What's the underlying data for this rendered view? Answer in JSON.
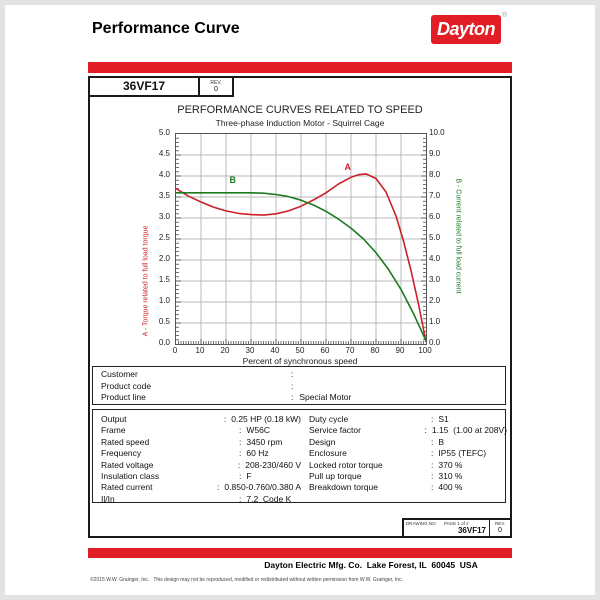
{
  "colors": {
    "brand_red": "#e11e26",
    "torque_red": "#cc2128",
    "current_green": "#1d7a1f"
  },
  "header": {
    "title": "Performance Curve",
    "brand": "Dayton",
    "registered": "®"
  },
  "model_box": {
    "model": "36VF17",
    "rev_label": "REV.",
    "rev_value": "0"
  },
  "chart_data": {
    "type": "line",
    "title": "PERFORMANCE CURVES RELATED TO SPEED",
    "subtitle": "Three-phase Induction Motor - Squirrel Cage",
    "xlabel": "Percent of synchronous speed",
    "left_axis_label": "A - Torque related to full load torque",
    "right_axis_label": "B - Current related to full load current",
    "xlim": [
      0,
      100
    ],
    "left_ylim": [
      0,
      5
    ],
    "right_ylim": [
      0,
      10
    ],
    "grid": true,
    "x_ticks": [
      "0",
      "10",
      "20",
      "30",
      "40",
      "50",
      "60",
      "70",
      "80",
      "90",
      "100"
    ],
    "left_ticks": [
      "5.0",
      "4.5",
      "4.0",
      "3.5",
      "3.0",
      "2.5",
      "2.0",
      "1.5",
      "1.0",
      "0.5",
      "0.0"
    ],
    "right_ticks": [
      "10.0",
      "9.0",
      "8.0",
      "7.0",
      "6.0",
      "5.0",
      "4.0",
      "3.0",
      "2.0",
      "1.0",
      "0.0"
    ],
    "series": [
      {
        "name": "A - Torque related to full load torque",
        "label": "A",
        "axis": "left",
        "color": "#cc2128",
        "label_x": 69,
        "label_value": 4.18,
        "points": [
          [
            0,
            3.7
          ],
          [
            5,
            3.52
          ],
          [
            10,
            3.38
          ],
          [
            15,
            3.26
          ],
          [
            20,
            3.17
          ],
          [
            25,
            3.11
          ],
          [
            30,
            3.08
          ],
          [
            35,
            3.07
          ],
          [
            40,
            3.1
          ],
          [
            45,
            3.17
          ],
          [
            50,
            3.28
          ],
          [
            55,
            3.43
          ],
          [
            60,
            3.6
          ],
          [
            65,
            3.81
          ],
          [
            70,
            3.97
          ],
          [
            73,
            4.03
          ],
          [
            76,
            4.05
          ],
          [
            80,
            3.94
          ],
          [
            84,
            3.62
          ],
          [
            88,
            3.05
          ],
          [
            91,
            2.45
          ],
          [
            94,
            1.75
          ],
          [
            97,
            0.95
          ],
          [
            100,
            0.05
          ]
        ]
      },
      {
        "name": "B - Current related to full load current",
        "label": "B",
        "axis": "right",
        "color": "#1d7a1f",
        "label_x": 23,
        "label_value": 7.78,
        "points": [
          [
            0,
            7.2
          ],
          [
            10,
            7.2
          ],
          [
            20,
            7.2
          ],
          [
            30,
            7.2
          ],
          [
            35,
            7.18
          ],
          [
            40,
            7.12
          ],
          [
            45,
            7.02
          ],
          [
            50,
            6.85
          ],
          [
            55,
            6.62
          ],
          [
            60,
            6.32
          ],
          [
            65,
            5.95
          ],
          [
            70,
            5.52
          ],
          [
            75,
            5.0
          ],
          [
            80,
            4.35
          ],
          [
            85,
            3.55
          ],
          [
            90,
            2.6
          ],
          [
            95,
            1.45
          ],
          [
            100,
            0.15
          ]
        ]
      }
    ]
  },
  "customer_box": {
    "rows": [
      {
        "label": "Customer",
        "sep": ":",
        "value": ""
      },
      {
        "label": "Product code",
        "sep": ":",
        "value": ""
      },
      {
        "label": "Product line",
        "sep": ":",
        "value": "Special Motor"
      }
    ]
  },
  "specs": {
    "left": [
      {
        "label": "Output",
        "sep": ":",
        "value": "0.25 HP (0.18 kW)"
      },
      {
        "label": "Frame",
        "sep": ":",
        "value": "W56C"
      },
      {
        "label": "Rated speed",
        "sep": ":",
        "value": "3450 rpm"
      },
      {
        "label": "Frequency",
        "sep": ":",
        "value": "60 Hz"
      },
      {
        "label": "Rated voltage",
        "sep": ":",
        "value": "208-230/460 V"
      },
      {
        "label": "Insulation class",
        "sep": ":",
        "value": "F"
      },
      {
        "label": "Rated current",
        "sep": ":",
        "value": "0.850-0.760/0.380 A"
      },
      {
        "label": "Il/In",
        "sep": ":",
        "value": "7.2  Code K"
      }
    ],
    "right": [
      {
        "label": "Duty cycle",
        "sep": ":",
        "value": "S1"
      },
      {
        "label": "Service factor",
        "sep": ":",
        "value": "1.15  (1.00 at 208V)"
      },
      {
        "label": "Design",
        "sep": ":",
        "value": "B"
      },
      {
        "label": "Enclosure",
        "sep": ":",
        "value": "IP55 (TEFC)"
      },
      {
        "label": "Locked rotor torque",
        "sep": ":",
        "value": "370 %"
      },
      {
        "label": "Pull up torque",
        "sep": ":",
        "value": "310 %"
      },
      {
        "label": "Breakdown torque",
        "sep": ":",
        "value": "400 %"
      }
    ]
  },
  "drawing_box": {
    "drawing_no_label": "DRAWING NO.",
    "page_label": "PAGE 1 of 2",
    "drawing_no": "36VF17",
    "rev_label": "REV.",
    "rev_value": "0"
  },
  "footer": {
    "address": "Dayton Electric Mfg. Co.  Lake Forest, IL  60045  USA",
    "copyright": "©2015 W.W. Grainger, Inc.   This design may not be reproduced, modified or redistributed without written permission from W.W. Grainger, Inc."
  }
}
